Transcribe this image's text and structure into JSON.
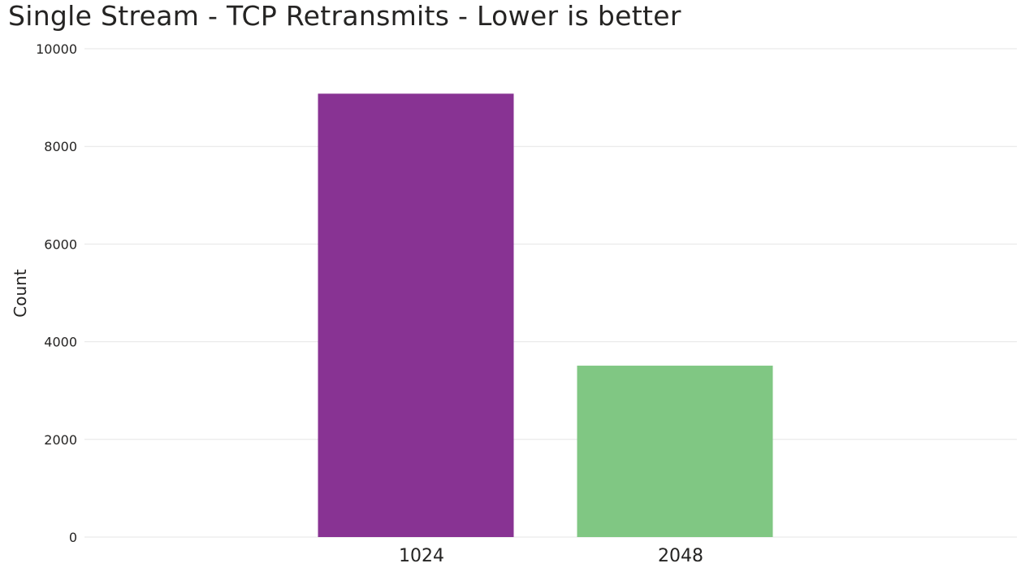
{
  "chart_data": {
    "type": "bar",
    "title": "Single Stream - TCP Retransmits - Lower is better",
    "xlabel": "",
    "ylabel": "Count",
    "categories": [
      "1024",
      "2048"
    ],
    "values": [
      9080,
      3510
    ],
    "colors": [
      "#883393",
      "#80c783"
    ],
    "ylim": [
      0,
      10000
    ],
    "yticks": [
      0,
      2000,
      4000,
      6000,
      8000,
      10000
    ],
    "ytick_labels": [
      "0",
      "2000",
      "4000",
      "6000",
      "8000",
      "10000"
    ],
    "grid": true,
    "legend": "none"
  }
}
